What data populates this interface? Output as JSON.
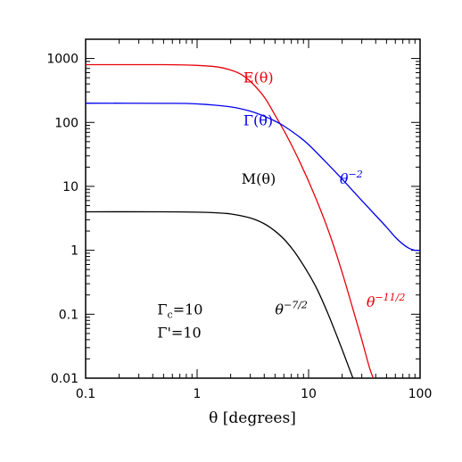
{
  "chart_data": {
    "type": "line",
    "title": "",
    "xlabel": "θ [degrees]",
    "ylabel": "",
    "xscale": "log",
    "yscale": "log",
    "xlim": [
      0.1,
      100
    ],
    "ylim": [
      0.01,
      2000
    ],
    "grid": false,
    "x_ticks": [
      {
        "value": 0.1,
        "label": "0.1"
      },
      {
        "value": 1,
        "label": "1"
      },
      {
        "value": 10,
        "label": "10"
      },
      {
        "value": 100,
        "label": "100"
      }
    ],
    "y_ticks": [
      {
        "value": 0.01,
        "label": "0.01"
      },
      {
        "value": 0.1,
        "label": "0.1"
      },
      {
        "value": 1,
        "label": "1"
      },
      {
        "value": 10,
        "label": "10"
      },
      {
        "value": 100,
        "label": "100"
      },
      {
        "value": 1000,
        "label": "1000"
      }
    ],
    "series": [
      {
        "name": "E(θ)",
        "color": "#e8000b",
        "x": [
          0.1,
          0.5,
          1,
          1.5,
          2,
          2.5,
          3,
          4,
          5,
          6,
          7,
          8,
          10,
          13,
          16,
          20,
          25,
          30,
          35,
          38
        ],
        "y": [
          800,
          800,
          780,
          740,
          660,
          560,
          440,
          250,
          130,
          75,
          45,
          28,
          12,
          4,
          1.5,
          0.45,
          0.12,
          0.04,
          0.015,
          0.01
        ]
      },
      {
        "name": "Γ(θ)",
        "color": "#0000ee",
        "x": [
          0.1,
          0.5,
          1,
          2,
          3,
          4,
          5,
          6,
          8,
          10,
          15,
          20,
          30,
          40,
          50,
          60,
          70,
          80,
          90,
          100
        ],
        "y": [
          200,
          199,
          195,
          175,
          150,
          125,
          105,
          88,
          62,
          45,
          22,
          13,
          6,
          3.5,
          2.3,
          1.6,
          1.25,
          1.07,
          1.0,
          1.0
        ]
      },
      {
        "name": "M(θ)",
        "color": "#000000",
        "x": [
          0.1,
          0.5,
          1,
          1.5,
          2,
          3,
          4,
          5,
          6,
          7,
          8,
          10,
          12,
          15,
          18,
          20,
          22,
          25
        ],
        "y": [
          4,
          4,
          3.95,
          3.85,
          3.7,
          3.2,
          2.6,
          2.0,
          1.5,
          1.1,
          0.8,
          0.43,
          0.24,
          0.1,
          0.045,
          0.028,
          0.018,
          0.01
        ]
      }
    ],
    "annotations": [
      {
        "id": "e",
        "text": "E(θ)",
        "x": 2.6,
        "y": 420,
        "color": "#e8000b"
      },
      {
        "id": "gamma",
        "text": "Γ(θ)",
        "x": 2.6,
        "y": 90,
        "color": "#0000ee"
      },
      {
        "id": "m",
        "text": "M(θ)",
        "x": 2.5,
        "y": 11,
        "color": "#000000"
      },
      {
        "id": "pow2",
        "base": "θ",
        "exp": "−2",
        "x": 19,
        "y": 11,
        "color": "#0000ee"
      },
      {
        "id": "pow112",
        "base": "θ",
        "exp": "−11/2",
        "x": 33,
        "y": 0.13,
        "color": "#e8000b"
      },
      {
        "id": "pow72",
        "base": "θ",
        "exp": "−7/2",
        "x": 5,
        "y": 0.1,
        "color": "#000000"
      },
      {
        "id": "gc",
        "base": "Γ",
        "sub": "c",
        "suffix": "=10",
        "x": 0.44,
        "y": 0.1,
        "color": "#000000"
      },
      {
        "id": "gp",
        "base": "Γ",
        "suffix": "'=10",
        "x": 0.44,
        "y": 0.043,
        "color": "#000000"
      }
    ]
  }
}
